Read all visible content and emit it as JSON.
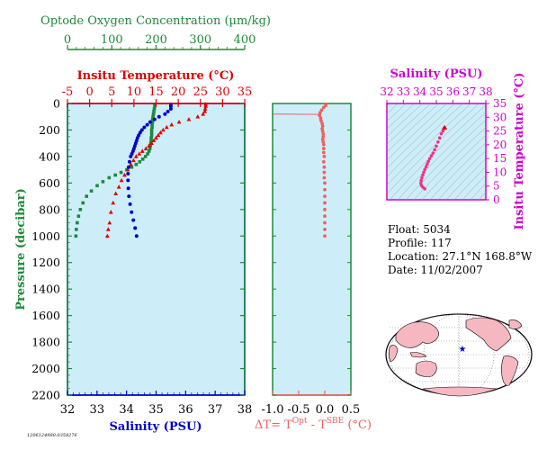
{
  "colors": {
    "panel_bg": "#cdeef8",
    "oxygen": "#1b8a3a",
    "temperature": "#dd0000",
    "salinity": "#0000cc",
    "delta_t": "#f06060",
    "ts_axis": "#cc00cc",
    "land": "#f5b8c0",
    "ocean": "#ffffff"
  },
  "main_chart": {
    "oxygen_axis": {
      "label": "Optode Oxygen Concentration (µm/kg)",
      "ticks": [
        "0",
        "100",
        "200",
        "300",
        "400"
      ],
      "range": [
        0,
        400
      ]
    },
    "temperature_axis": {
      "label": "Insitu Temperature (°C)",
      "ticks": [
        "-5",
        "0",
        "5",
        "10",
        "15",
        "20",
        "25",
        "30",
        "35"
      ],
      "range": [
        -5,
        35
      ]
    },
    "salinity_axis": {
      "label": "Salinity (PSU)",
      "ticks": [
        "32",
        "33",
        "34",
        "35",
        "36",
        "37",
        "38"
      ],
      "range": [
        32,
        38
      ]
    },
    "pressure_axis": {
      "label": "Pressure (decibar)",
      "ticks": [
        "0",
        "200",
        "400",
        "600",
        "800",
        "1000",
        "1200",
        "1400",
        "1600",
        "1800",
        "2000",
        "2200"
      ],
      "range": [
        0,
        2200
      ]
    }
  },
  "delta_chart": {
    "xlabel_prefix": "ΔT= T",
    "xlabel_sup1": "Opt",
    "xlabel_mid": " - T",
    "xlabel_sup2": "SBE",
    "xlabel_suffix": " (°C)",
    "ticks": [
      "-1.0",
      "-0.5",
      "0.0",
      "0.5"
    ],
    "range": [
      -1.0,
      0.5
    ]
  },
  "ts_chart": {
    "salinity_label": "Salinity (PSU)",
    "salinity_ticks": [
      "32",
      "33",
      "34",
      "35",
      "36",
      "37",
      "38"
    ],
    "temperature_label": "Insitu Temperature (°C)",
    "temperature_ticks": [
      "0",
      "5",
      "10",
      "15",
      "20",
      "25",
      "30",
      "35"
    ]
  },
  "float_info": {
    "float_line": "Float:  5034",
    "profile_line": "Profile:  117",
    "location_line": "Location:  27.1°N  168.8°W",
    "date_line": "Date:  11/02/2007"
  },
  "footer_code": "1206124980.0358276",
  "chart_data": [
    {
      "type": "scatter",
      "title": "",
      "y_axis": "Pressure (decibar)",
      "ylim": [
        0,
        2200
      ],
      "series": [
        {
          "name": "Optode Oxygen Concentration (µm/kg)",
          "marker": "square",
          "x_range": [
            0,
            400
          ],
          "points": [
            [
              197,
              5
            ],
            [
              197,
              20
            ],
            [
              196,
              40
            ],
            [
              195,
              60
            ],
            [
              194,
              80
            ],
            [
              193,
              100
            ],
            [
              192,
              120
            ],
            [
              192,
              140
            ],
            [
              191,
              160
            ],
            [
              191,
              180
            ],
            [
              190,
              200
            ],
            [
              190,
              220
            ],
            [
              190,
              240
            ],
            [
              189,
              260
            ],
            [
              189,
              280
            ],
            [
              188,
              300
            ],
            [
              187,
              320
            ],
            [
              186,
              340
            ],
            [
              184,
              360
            ],
            [
              181,
              380
            ],
            [
              176,
              400
            ],
            [
              170,
              420
            ],
            [
              163,
              440
            ],
            [
              155,
              460
            ],
            [
              145,
              480
            ],
            [
              134,
              500
            ],
            [
              121,
              520
            ],
            [
              108,
              540
            ],
            [
              94,
              560
            ],
            [
              80,
              590
            ],
            [
              67,
              620
            ],
            [
              54,
              660
            ],
            [
              43,
              700
            ],
            [
              35,
              750
            ],
            [
              29,
              800
            ],
            [
              25,
              850
            ],
            [
              22,
              900
            ],
            [
              20,
              950
            ],
            [
              19,
              1000
            ]
          ]
        },
        {
          "name": "Insitu Temperature (°C)",
          "marker": "triangle",
          "x_range": [
            -5,
            35
          ],
          "points": [
            [
              26.2,
              5
            ],
            [
              26.2,
              20
            ],
            [
              26.1,
              40
            ],
            [
              26.0,
              60
            ],
            [
              25.6,
              80
            ],
            [
              24.4,
              100
            ],
            [
              22.4,
              120
            ],
            [
              20.2,
              140
            ],
            [
              18.5,
              160
            ],
            [
              17.4,
              180
            ],
            [
              16.6,
              200
            ],
            [
              16.0,
              220
            ],
            [
              15.5,
              240
            ],
            [
              15.0,
              260
            ],
            [
              14.5,
              280
            ],
            [
              14.0,
              300
            ],
            [
              13.4,
              320
            ],
            [
              12.7,
              340
            ],
            [
              11.9,
              360
            ],
            [
              11.2,
              380
            ],
            [
              10.5,
              400
            ],
            [
              9.9,
              430
            ],
            [
              9.3,
              460
            ],
            [
              8.6,
              500
            ],
            [
              7.9,
              540
            ],
            [
              7.2,
              580
            ],
            [
              6.6,
              630
            ],
            [
              5.9,
              680
            ],
            [
              5.3,
              750
            ],
            [
              4.8,
              820
            ],
            [
              4.5,
              900
            ],
            [
              4.2,
              950
            ],
            [
              4.0,
              1000
            ]
          ]
        },
        {
          "name": "Salinity (PSU)",
          "marker": "circle",
          "x_range": [
            32,
            38
          ],
          "points": [
            [
              35.5,
              5
            ],
            [
              35.5,
              20
            ],
            [
              35.5,
              40
            ],
            [
              35.4,
              60
            ],
            [
              35.3,
              80
            ],
            [
              35.1,
              100
            ],
            [
              34.95,
              120
            ],
            [
              34.8,
              140
            ],
            [
              34.7,
              160
            ],
            [
              34.6,
              180
            ],
            [
              34.52,
              200
            ],
            [
              34.46,
              220
            ],
            [
              34.41,
              240
            ],
            [
              34.37,
              260
            ],
            [
              34.34,
              280
            ],
            [
              34.31,
              300
            ],
            [
              34.28,
              320
            ],
            [
              34.25,
              340
            ],
            [
              34.22,
              360
            ],
            [
              34.18,
              380
            ],
            [
              34.14,
              400
            ],
            [
              34.1,
              440
            ],
            [
              34.07,
              480
            ],
            [
              34.05,
              530
            ],
            [
              34.05,
              580
            ],
            [
              34.06,
              640
            ],
            [
              34.08,
              700
            ],
            [
              34.12,
              760
            ],
            [
              34.17,
              820
            ],
            [
              34.23,
              880
            ],
            [
              34.29,
              940
            ],
            [
              34.34,
              1000
            ]
          ]
        }
      ]
    },
    {
      "type": "scatter",
      "title": "",
      "x_axis": "ΔT= T(Opt) - T(SBE) (°C)",
      "xlim": [
        -1.0,
        0.5
      ],
      "ylim": [
        0,
        2200
      ],
      "series": [
        {
          "name": "ΔT",
          "marker": "circle",
          "points": [
            [
              0.02,
              5
            ],
            [
              0.02,
              15
            ],
            [
              -0.02,
              30
            ],
            [
              -0.06,
              50
            ],
            [
              -0.09,
              70
            ],
            [
              -0.1,
              90
            ],
            [
              -0.08,
              110
            ],
            [
              -0.07,
              130
            ],
            [
              -0.05,
              150
            ],
            [
              -0.04,
              170
            ],
            [
              -0.05,
              190
            ],
            [
              -0.04,
              210
            ],
            [
              -0.03,
              230
            ],
            [
              -0.03,
              250
            ],
            [
              -0.04,
              270
            ],
            [
              -0.03,
              290
            ],
            [
              -0.02,
              310
            ],
            [
              -0.02,
              340
            ],
            [
              -0.02,
              370
            ],
            [
              -0.01,
              400
            ],
            [
              -0.02,
              440
            ],
            [
              -0.01,
              480
            ],
            [
              -0.01,
              520
            ],
            [
              -0.01,
              560
            ],
            [
              0.0,
              600
            ],
            [
              0.0,
              650
            ],
            [
              0.0,
              700
            ],
            [
              0.0,
              750
            ],
            [
              0.0,
              800
            ],
            [
              0.0,
              850
            ],
            [
              0.0,
              900
            ],
            [
              0.0,
              950
            ],
            [
              0.0,
              1000
            ]
          ]
        }
      ]
    },
    {
      "type": "scatter",
      "title": "",
      "xlabel": "Salinity (PSU)",
      "ylabel": "Insitu Temperature (°C)",
      "xlim": [
        32,
        38
      ],
      "ylim": [
        0,
        35
      ],
      "series": [
        {
          "name": "T-S",
          "marker": "circle",
          "points": [
            [
              35.5,
              26.2
            ],
            [
              35.45,
              25.8
            ],
            [
              35.4,
              25.0
            ],
            [
              35.3,
              24.0
            ],
            [
              35.2,
              22.5
            ],
            [
              35.1,
              21.0
            ],
            [
              35.0,
              19.5
            ],
            [
              34.9,
              18.2
            ],
            [
              34.8,
              17.0
            ],
            [
              34.7,
              16.0
            ],
            [
              34.6,
              15.0
            ],
            [
              34.52,
              14.0
            ],
            [
              34.45,
              13.0
            ],
            [
              34.38,
              12.0
            ],
            [
              34.3,
              11.0
            ],
            [
              34.24,
              10.0
            ],
            [
              34.18,
              9.0
            ],
            [
              34.12,
              8.0
            ],
            [
              34.08,
              7.0
            ],
            [
              34.06,
              6.0
            ],
            [
              34.1,
              5.2
            ],
            [
              34.18,
              4.6
            ],
            [
              34.3,
              4.0
            ]
          ]
        }
      ]
    }
  ]
}
